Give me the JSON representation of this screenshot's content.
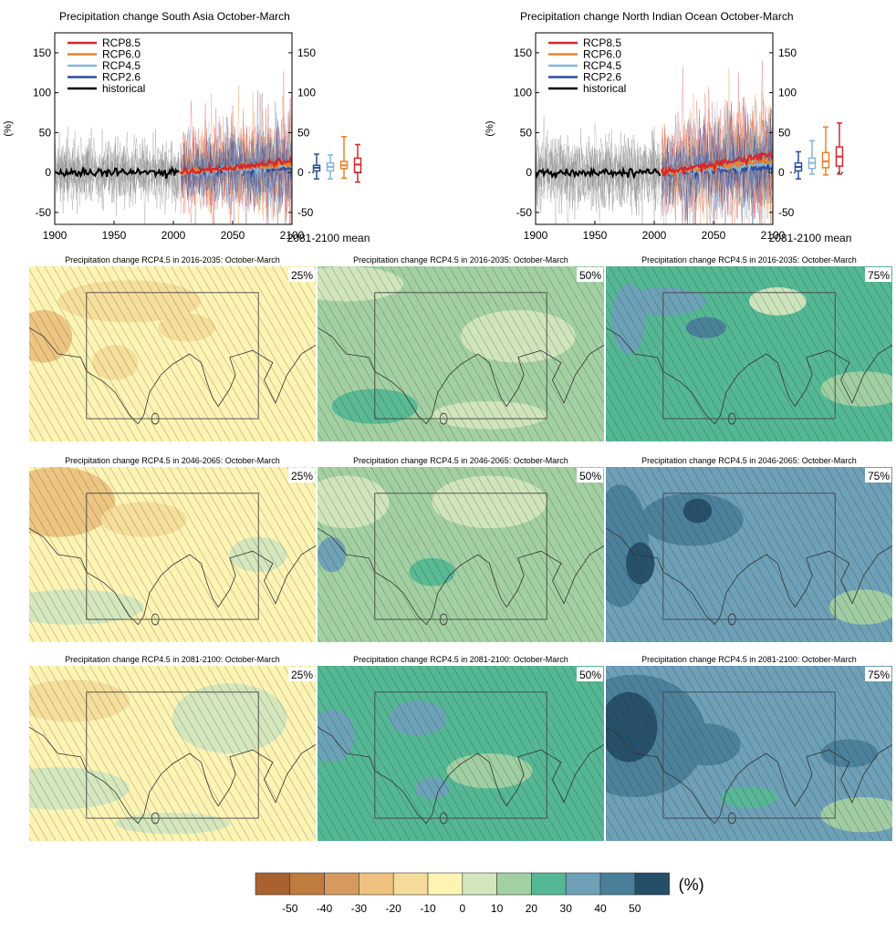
{
  "chart_data": [
    {
      "type": "line",
      "id": "ts-south-asia",
      "title": "Precipitation change South Asia October-March",
      "ylabel": "(%)",
      "xlim": [
        1900,
        2100
      ],
      "ylim": [
        -65,
        175
      ],
      "xticks": [
        1900,
        1950,
        2000,
        2050,
        2100
      ],
      "yticks": [
        -50,
        0,
        50,
        100,
        150
      ],
      "series": [
        {
          "name": "RCP8.5",
          "color": "#d7272b"
        },
        {
          "name": "RCP6.0",
          "color": "#e8822b"
        },
        {
          "name": "RCP4.5",
          "color": "#86b5d9"
        },
        {
          "name": "RCP2.6",
          "color": "#2b4c9a"
        },
        {
          "name": "historical",
          "color": "#000000"
        }
      ],
      "boxplot_label": "2081-2100 mean",
      "boxplots": [
        {
          "series": "RCP2.6",
          "min": -8,
          "q1": 2,
          "median": 6,
          "q3": 9,
          "max": 23
        },
        {
          "series": "RCP4.5",
          "min": -8,
          "q1": 2,
          "median": 7,
          "q3": 12,
          "max": 22
        },
        {
          "series": "RCP6.0",
          "min": -7,
          "q1": 5,
          "median": 9,
          "q3": 14,
          "max": 45
        },
        {
          "series": "RCP8.5",
          "min": -12,
          "q1": 0,
          "median": 10,
          "q3": 18,
          "max": 35
        }
      ]
    },
    {
      "type": "line",
      "id": "ts-north-indian-ocean",
      "title": "Precipitation change North Indian Ocean October-March",
      "ylabel": "(%)",
      "xlim": [
        1900,
        2100
      ],
      "ylim": [
        -65,
        175
      ],
      "xticks": [
        1900,
        1950,
        2000,
        2050,
        2100
      ],
      "yticks": [
        -50,
        0,
        50,
        100,
        150
      ],
      "series": [
        {
          "name": "RCP8.5",
          "color": "#d7272b"
        },
        {
          "name": "RCP6.0",
          "color": "#e8822b"
        },
        {
          "name": "RCP4.5",
          "color": "#86b5d9"
        },
        {
          "name": "RCP2.6",
          "color": "#2b4c9a"
        },
        {
          "name": "historical",
          "color": "#000000"
        }
      ],
      "boxplot_label": "2081-2100 mean",
      "boxplots": [
        {
          "series": "RCP2.6",
          "min": -8,
          "q1": 2,
          "median": 7,
          "q3": 12,
          "max": 26
        },
        {
          "series": "RCP4.5",
          "min": -2,
          "q1": 5,
          "median": 12,
          "q3": 18,
          "max": 40
        },
        {
          "series": "RCP6.0",
          "min": -3,
          "q1": 6,
          "median": 14,
          "q3": 25,
          "max": 57
        },
        {
          "series": "RCP8.5",
          "min": -2,
          "q1": 8,
          "median": 20,
          "q3": 32,
          "max": 62
        }
      ]
    },
    {
      "type": "heatmap",
      "id": "map-grid",
      "panels": [
        {
          "title": "Precipitation change RCP4.5 in 2016-2035: October-March",
          "percentile": "25%",
          "dominant_value": -10
        },
        {
          "title": "Precipitation change RCP4.5 in 2016-2035: October-March",
          "percentile": "50%",
          "dominant_value": 10
        },
        {
          "title": "Precipitation change RCP4.5 in 2016-2035: October-March",
          "percentile": "75%",
          "dominant_value": 20
        },
        {
          "title": "Precipitation change RCP4.5 in 2046-2065: October-March",
          "percentile": "25%",
          "dominant_value": -10
        },
        {
          "title": "Precipitation change RCP4.5 in 2046-2065: October-March",
          "percentile": "50%",
          "dominant_value": 10
        },
        {
          "title": "Precipitation change RCP4.5 in 2046-2065: October-March",
          "percentile": "75%",
          "dominant_value": 30
        },
        {
          "title": "Precipitation change RCP4.5 in 2081-2100: October-March",
          "percentile": "25%",
          "dominant_value": -10
        },
        {
          "title": "Precipitation change RCP4.5 in 2081-2100: October-March",
          "percentile": "50%",
          "dominant_value": 20
        },
        {
          "title": "Precipitation change RCP4.5 in 2081-2100: October-March",
          "percentile": "75%",
          "dominant_value": 30
        }
      ],
      "colorbar": {
        "unit": "(%)",
        "tick_labels": [
          "-50",
          "-40",
          "-30",
          "-20",
          "-10",
          "0",
          "10",
          "20",
          "30",
          "40",
          "50"
        ],
        "colors": [
          "#a8612f",
          "#c07b3e",
          "#d69a5e",
          "#ecc27e",
          "#f5dc9a",
          "#fdf4b4",
          "#d3e6be",
          "#a3d0a2",
          "#55b894",
          "#6ea0b8",
          "#4a7f99",
          "#254e67"
        ]
      }
    }
  ]
}
